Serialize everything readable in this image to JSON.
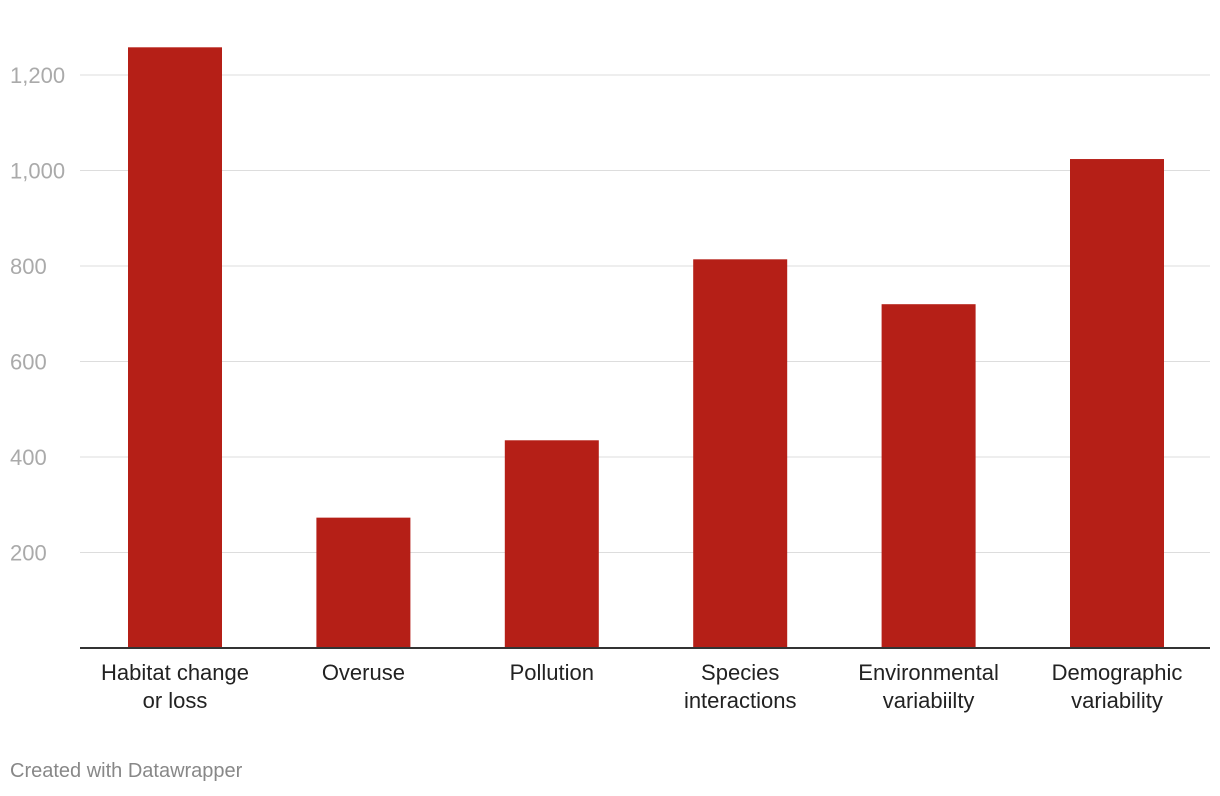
{
  "chart_data": {
    "type": "bar",
    "categories": [
      [
        "Habitat change",
        "or loss"
      ],
      [
        "Overuse"
      ],
      [
        "Pollution"
      ],
      [
        "Species",
        "interactions"
      ],
      [
        "Environmental",
        "variabiilty"
      ],
      [
        "Demographic",
        "variability"
      ]
    ],
    "category_names": [
      "Habitat change or loss",
      "Overuse",
      "Pollution",
      "Species interactions",
      "Environmental variabiilty",
      "Demographic variability"
    ],
    "values": [
      1258,
      273,
      435,
      814,
      720,
      1024
    ],
    "ylim": [
      0,
      1200
    ],
    "yticks": [
      {
        "value": 200,
        "label": "200"
      },
      {
        "value": 400,
        "label": "400"
      },
      {
        "value": 600,
        "label": "600"
      },
      {
        "value": 800,
        "label": "800"
      },
      {
        "value": 1000,
        "label": "1,000"
      },
      {
        "value": 1200,
        "label": "1,200"
      }
    ],
    "bar_color": "#b51f17",
    "grid": true,
    "title": "",
    "xlabel": "",
    "ylabel": ""
  },
  "footer": {
    "credit": "Created with Datawrapper"
  }
}
